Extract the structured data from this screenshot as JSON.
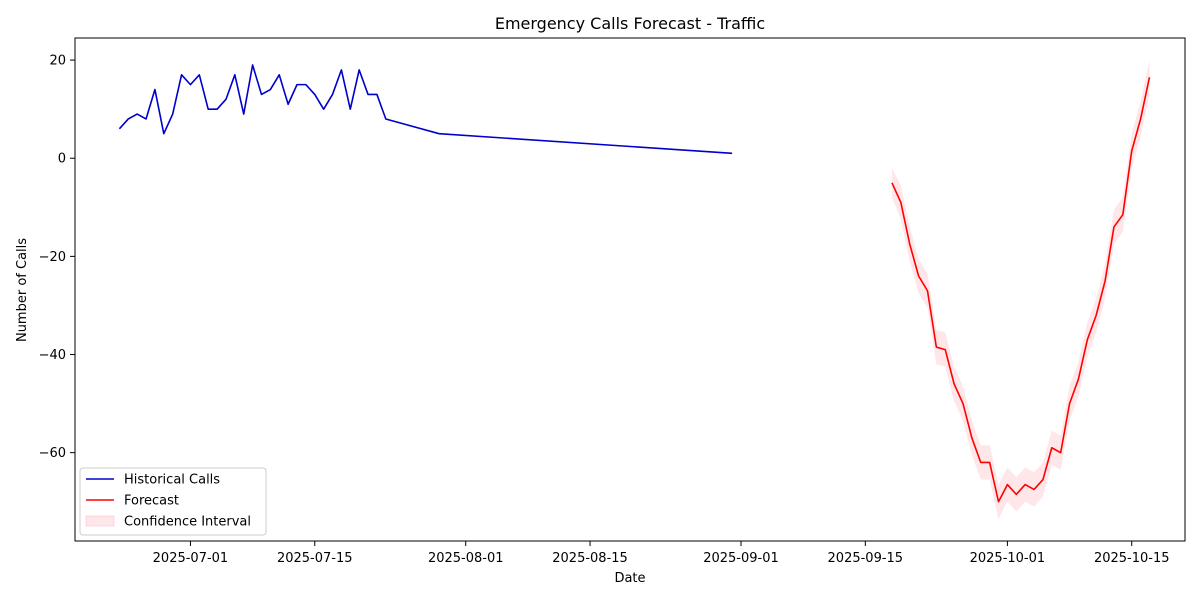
{
  "chart_data": {
    "type": "line",
    "title": "Emergency Calls Forecast - Traffic",
    "xlabel": "Date",
    "ylabel": "Number of Calls",
    "xlim": [
      "2025-06-18",
      "2025-10-21"
    ],
    "ylim": [
      -78,
      24.5
    ],
    "x_ticks": [
      "2025-07-01",
      "2025-07-15",
      "2025-08-01",
      "2025-08-15",
      "2025-09-01",
      "2025-09-15",
      "2025-10-01",
      "2025-10-15"
    ],
    "y_ticks": [
      20,
      0,
      -20,
      -40,
      -60
    ],
    "y_tick_labels": [
      "20",
      "0",
      "−20",
      "−40",
      "−60"
    ],
    "grid": false,
    "legend_position": "lower-left",
    "series": [
      {
        "name": "Historical Calls",
        "color": "#0000cc",
        "x": [
          "2025-06-23",
          "2025-06-24",
          "2025-06-25",
          "2025-06-26",
          "2025-06-27",
          "2025-06-28",
          "2025-06-29",
          "2025-06-30",
          "2025-07-01",
          "2025-07-02",
          "2025-07-03",
          "2025-07-04",
          "2025-07-05",
          "2025-07-06",
          "2025-07-07",
          "2025-07-08",
          "2025-07-09",
          "2025-07-10",
          "2025-07-11",
          "2025-07-12",
          "2025-07-13",
          "2025-07-14",
          "2025-07-15",
          "2025-07-16",
          "2025-07-17",
          "2025-07-18",
          "2025-07-19",
          "2025-07-20",
          "2025-07-21",
          "2025-07-22",
          "2025-07-23",
          "2025-07-29",
          "2025-08-31"
        ],
        "values": [
          6,
          8,
          9,
          8,
          14,
          5,
          9,
          17,
          15,
          17,
          10,
          10,
          12,
          17,
          9,
          19,
          13,
          14,
          17,
          11,
          15,
          15,
          13,
          10,
          13,
          18,
          10,
          18,
          13,
          13,
          8,
          5,
          1
        ]
      },
      {
        "name": "Forecast",
        "color": "#ff0000",
        "x": [
          "2025-09-18",
          "2025-09-19",
          "2025-09-20",
          "2025-09-21",
          "2025-09-22",
          "2025-09-23",
          "2025-09-24",
          "2025-09-25",
          "2025-09-26",
          "2025-09-27",
          "2025-09-28",
          "2025-09-29",
          "2025-09-30",
          "2025-10-01",
          "2025-10-02",
          "2025-10-03",
          "2025-10-04",
          "2025-10-05",
          "2025-10-06",
          "2025-10-07",
          "2025-10-08",
          "2025-10-09",
          "2025-10-10",
          "2025-10-11",
          "2025-10-12",
          "2025-10-13",
          "2025-10-14",
          "2025-10-15",
          "2025-10-16",
          "2025-10-17"
        ],
        "values": [
          -5,
          -9,
          -17.5,
          -24,
          -27,
          -38.5,
          -39,
          -46,
          -50,
          -57,
          -62,
          -62,
          -70,
          -66.5,
          -68.5,
          -66.5,
          -67.5,
          -65.5,
          -59,
          -60,
          -50,
          -45,
          -37,
          -32,
          -25,
          -14,
          -11.5,
          1.5,
          8,
          16.5
        ]
      }
    ],
    "confidence_interval": {
      "name": "Confidence Interval",
      "color": "#ffb6c1",
      "opacity": 0.35,
      "x": [
        "2025-09-18",
        "2025-09-19",
        "2025-09-20",
        "2025-09-21",
        "2025-09-22",
        "2025-09-23",
        "2025-09-24",
        "2025-09-25",
        "2025-09-26",
        "2025-09-27",
        "2025-09-28",
        "2025-09-29",
        "2025-09-30",
        "2025-10-01",
        "2025-10-02",
        "2025-10-03",
        "2025-10-04",
        "2025-10-05",
        "2025-10-06",
        "2025-10-07",
        "2025-10-08",
        "2025-10-09",
        "2025-10-10",
        "2025-10-11",
        "2025-10-12",
        "2025-10-13",
        "2025-10-14",
        "2025-10-15",
        "2025-10-16",
        "2025-10-17"
      ],
      "lower": [
        -8,
        -12.5,
        -21,
        -27.5,
        -30.5,
        -42,
        -42.5,
        -49.5,
        -53.5,
        -60.5,
        -65.5,
        -65.5,
        -73.5,
        -70,
        -72,
        -70,
        -71,
        -69,
        -62.5,
        -63.5,
        -53.5,
        -48.5,
        -40.5,
        -35.5,
        -28.5,
        -17.5,
        -15,
        -2,
        4.5,
        13
      ],
      "upper": [
        -2,
        -5.5,
        -14,
        -20.5,
        -23.5,
        -35,
        -35.5,
        -42.5,
        -46.5,
        -53.5,
        -58.5,
        -58.5,
        -66.5,
        -63,
        -65,
        -63,
        -64,
        -62,
        -55.5,
        -56.5,
        -46.5,
        -41.5,
        -33.5,
        -28.5,
        -21.5,
        -10.5,
        -8,
        5,
        11.5,
        20
      ]
    }
  }
}
